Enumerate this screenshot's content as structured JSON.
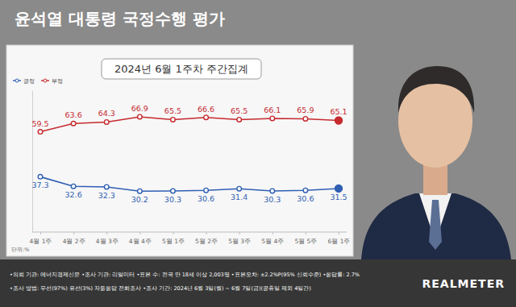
{
  "chart_data": {
    "type": "line",
    "title": "윤석열 대통령 국정수행 평가",
    "subtitle": "2024년 6월 1주차 주간집계",
    "ylabel": "단위:%",
    "categories": [
      "4월 1주",
      "4월 2주",
      "4월 3주",
      "4월 4주",
      "5월 1주",
      "5월 2주",
      "5월 3주",
      "5월 4주",
      "5월 5주",
      "6월 1주"
    ],
    "series": [
      {
        "name": "긍정",
        "color": "#2f5fb3",
        "values": [
          37.3,
          32.6,
          32.3,
          30.2,
          30.3,
          30.6,
          31.4,
          30.3,
          30.6,
          31.5
        ]
      },
      {
        "name": "부정",
        "color": "#c62a2f",
        "values": [
          59.5,
          63.6,
          64.3,
          66.9,
          65.5,
          66.6,
          65.5,
          66.1,
          65.9,
          65.1
        ]
      }
    ],
    "ylim": [
      10,
      80
    ],
    "yticks": [],
    "grid": false,
    "legend": "upper left",
    "data_labels": true,
    "tick_labels": "x",
    "marker": "circle",
    "annotations": [
      "•의뢰 기관: 에너지경제신문 •조사 기관: 리얼미터 •표본 수: 전국 만 18세 이상 2,003명 •표본오차: ±2.2%P(95% 신뢰수준) •응답률: 2.7%",
      "•조사 방법: 무선(97%) 유선(3%) 자동응답 전화조사 •조사 기간: 2024년 6월 3일(월) ~ 6월 7일(금)(공휴일 제외 4일간)",
      "REALMETER"
    ]
  }
}
